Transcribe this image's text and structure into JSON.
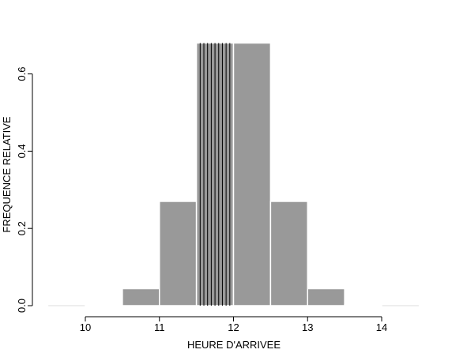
{
  "chart_data": {
    "type": "bar",
    "xlabel": "HEURE D'ARRIVEE",
    "ylabel": "FREQUENCE RELATIVE",
    "xlim": [
      9.5,
      14.5
    ],
    "ylim": [
      0,
      0.7
    ],
    "x_ticks": [
      "10",
      "11",
      "12",
      "13",
      "14"
    ],
    "y_ticks": [
      "0.0",
      "0.2",
      "0.4",
      "0.6"
    ],
    "bins": [
      {
        "start": 10.0,
        "end": 10.5,
        "value": 0.003
      },
      {
        "start": 10.5,
        "end": 11.0,
        "value": 0.044
      },
      {
        "start": 11.0,
        "end": 11.5,
        "value": 0.27
      },
      {
        "start": 11.5,
        "end": 12.0,
        "value": 0.68
      },
      {
        "start": 12.0,
        "end": 12.5,
        "value": 0.68
      },
      {
        "start": 12.5,
        "end": 13.0,
        "value": 0.27
      },
      {
        "start": 13.0,
        "end": 13.5,
        "value": 0.044
      },
      {
        "start": 13.5,
        "end": 14.0,
        "value": 0.003
      }
    ],
    "vertical_lines": {
      "x": [
        11.55,
        11.6,
        11.65,
        11.7,
        11.75,
        11.8,
        11.85,
        11.9,
        11.95
      ],
      "ymax": 0.68
    },
    "colors": {
      "bar_fill": "#999999",
      "bar_edge": "#ffffff",
      "line": "#000000",
      "baseline": "#dddddd"
    },
    "grid": false,
    "legend": "none"
  }
}
